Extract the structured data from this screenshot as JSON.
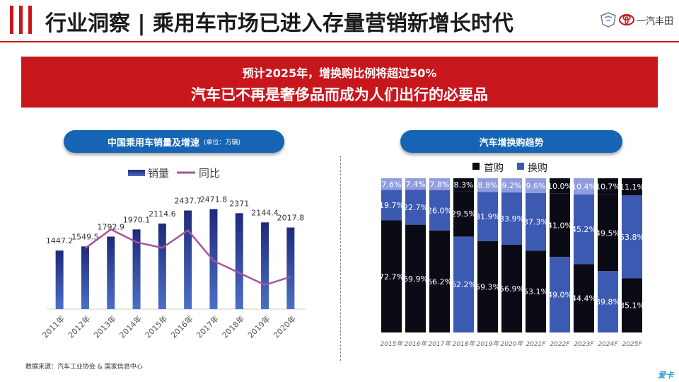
{
  "header": {
    "title": "行业洞察 | 乘用车市场已进入存量营销新增长时代",
    "logo_text": "一汽丰田"
  },
  "banner": {
    "line1": "预计2025年，增换购比例将超过50%",
    "line2": "汽车已不再是奢侈品而成为人们出行的必要品"
  },
  "left_panel": {
    "title": "中国乘用车销量及增速",
    "unit": "(单位：万辆)"
  },
  "right_panel": {
    "title": "汽车增换购趋势"
  },
  "source": "数据来源：汽车工业协会 & 国家信息中心",
  "corner_mark": "爱卡",
  "chart_data": [
    {
      "type": "bar",
      "title": "中国乘用车销量及增速",
      "categories": [
        "2011年",
        "2012年",
        "2013年",
        "2014年",
        "2015年",
        "2016年",
        "2017年",
        "2018年",
        "2019年",
        "2020年"
      ],
      "series": [
        {
          "name": "销量",
          "type": "bar",
          "values": [
            1447.2,
            1549.5,
            1792.9,
            1970.1,
            2114.6,
            2437.7,
            2471.8,
            2371,
            2144.4,
            2017.8
          ],
          "color": "#27318e"
        },
        {
          "name": "同比",
          "type": "line",
          "values": [
            null,
            7.1,
            15.7,
            9.9,
            7.3,
            15.3,
            1.4,
            -4.1,
            -9.6,
            -5.9
          ],
          "color": "#a5559e"
        }
      ],
      "ylim": [
        0,
        3000
      ],
      "legend": "top",
      "grid": false
    },
    {
      "type": "bar",
      "stacked": true,
      "title": "汽车增换购趋势",
      "categories": [
        "2015年",
        "2016年",
        "2017年",
        "2018年",
        "2019年",
        "2020年",
        "2021F",
        "2022F",
        "2023F",
        "2024F",
        "2025F"
      ],
      "series": [
        {
          "name": "首购",
          "color": "#0b0b16",
          "bottom": [
            72.7,
            69.9,
            66.2,
            null,
            59.3,
            56.9,
            53.1,
            null,
            44.4,
            null,
            35.1
          ]
        },
        {
          "name": "换购",
          "color": "#3d5ab3",
          "bottom": [
            null,
            null,
            null,
            62.2,
            null,
            null,
            null,
            49.0,
            null,
            39.8,
            null
          ]
        },
        {
          "name": "",
          "middle": [
            19.7,
            22.7,
            26.0,
            29.5,
            31.9,
            33.9,
            37.3,
            41.0,
            45.2,
            49.5,
            53.8
          ]
        },
        {
          "name": "",
          "top": [
            7.6,
            7.4,
            7.8,
            8.3,
            8.8,
            9.2,
            9.6,
            10.0,
            10.4,
            10.7,
            11.1
          ]
        }
      ],
      "legend": "top",
      "grid": false
    }
  ]
}
